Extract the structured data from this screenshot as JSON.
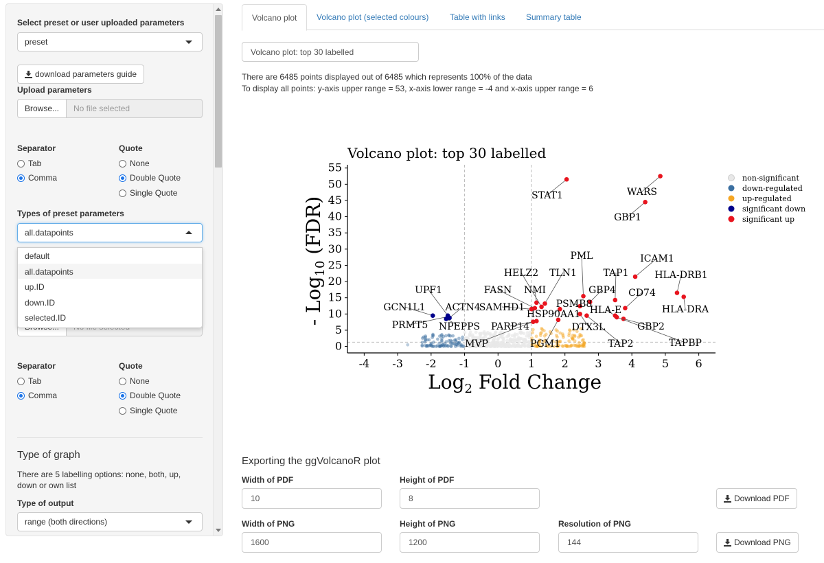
{
  "sidebar": {
    "select_params_label": "Select preset or user uploaded parameters",
    "select_params_value": "preset",
    "download_guide_label": "download parameters guide",
    "upload_label": "Upload parameters",
    "browse_label": "Browse...",
    "no_file_label": "No file selected",
    "separator_label": "Separator",
    "quote_label": "Quote",
    "sep_tab": "Tab",
    "sep_comma": "Comma",
    "quote_none": "None",
    "quote_double": "Double Quote",
    "quote_single": "Single Quote",
    "types_label": "Types of preset parameters",
    "types_value": "all.datapoints",
    "types_options": [
      "default",
      "all.datapoints",
      "up.ID",
      "down.ID",
      "selected.ID"
    ],
    "browse2_label": "Browse...",
    "no_file2_label": "No file selected",
    "graph_heading": "Type of graph",
    "graph_help": "There are 5 labelling options: none, both, up, down or own list",
    "output_label": "Type of output",
    "output_value": "range (both directions)"
  },
  "tabs": [
    "Volcano plot",
    "Volcano plot (selected colours)",
    "Table with links",
    "Summary table"
  ],
  "plot_title_input": "Volcano plot: top 30 labelled",
  "info_line1": "There are 6485 points displayed out of 6485 which represents 100% of the data",
  "info_line2": "To display all points: y-axis upper range = 53, x-axis lower range = -4 and x-axis upper range = 6",
  "export": {
    "heading": "Exporting the ggVolcanoR plot",
    "width_pdf_label": "Width of PDF",
    "width_pdf_value": "10",
    "height_pdf_label": "Height of PDF",
    "height_pdf_value": "8",
    "download_pdf_label": "Download PDF",
    "width_png_label": "Width of PNG",
    "width_png_value": "1600",
    "height_png_label": "Height of PNG",
    "height_png_value": "1200",
    "res_png_label": "Resolution of PNG",
    "res_png_value": "144",
    "download_png_label": "Download PNG"
  },
  "colors": {
    "nonsig": "#e8e8e8",
    "down": "#3b6fa0",
    "up": "#f5a623",
    "sigdown": "#00008b",
    "sigup": "#e8141e",
    "accent": "#337ab7"
  },
  "chart_data": {
    "type": "scatter",
    "title": "Volcano plot: top 30 labelled",
    "xlabel": "Log2 Fold Change",
    "ylabel": "- Log10 (FDR)",
    "xlim": [
      -4.5,
      6.5
    ],
    "ylim": [
      -2,
      56
    ],
    "xticks": [
      -4,
      -3,
      -2,
      -1,
      0,
      1,
      2,
      3,
      4,
      5,
      6
    ],
    "yticks": [
      0,
      5,
      10,
      15,
      20,
      25,
      30,
      35,
      40,
      45,
      50,
      55
    ],
    "thresholds": {
      "x": [
        -1,
        1
      ],
      "y": 1.3
    },
    "grid": false,
    "legend_position": "right",
    "legend": [
      {
        "name": "non-significant",
        "color_key": "nonsig"
      },
      {
        "name": "down-regulated",
        "color_key": "down"
      },
      {
        "name": "up-regulated",
        "color_key": "up"
      },
      {
        "name": "significant down",
        "color_key": "sigdown"
      },
      {
        "name": "significant up",
        "color_key": "sigup"
      }
    ],
    "labelled_points": [
      {
        "gene": "STAT1",
        "x": 2.05,
        "y": 51.5,
        "type": "sigup"
      },
      {
        "gene": "WARS",
        "x": 4.85,
        "y": 52.5,
        "type": "sigup"
      },
      {
        "gene": "GBP1",
        "x": 4.4,
        "y": 44.5,
        "type": "sigup"
      },
      {
        "gene": "ICAM1",
        "x": 4.1,
        "y": 21.5,
        "type": "sigup"
      },
      {
        "gene": "HLA-DRB1",
        "x": 5.35,
        "y": 16.5,
        "type": "sigup"
      },
      {
        "gene": "HLA-DRA",
        "x": 5.55,
        "y": 15.3,
        "type": "sigup"
      },
      {
        "gene": "CD74",
        "x": 3.8,
        "y": 11.8,
        "type": "sigup"
      },
      {
        "gene": "TAP1",
        "x": 3.5,
        "y": 14.3,
        "type": "sigup"
      },
      {
        "gene": "PML",
        "x": 2.55,
        "y": 15.5,
        "type": "sigup"
      },
      {
        "gene": "GBP4",
        "x": 2.75,
        "y": 13.7,
        "type": "sigup"
      },
      {
        "gene": "PSMB8",
        "x": 2.45,
        "y": 12.4,
        "type": "sigup"
      },
      {
        "gene": "HLA-E",
        "x": 3.5,
        "y": 9.5,
        "type": "sigup"
      },
      {
        "gene": "GBP2",
        "x": 3.75,
        "y": 8.5,
        "type": "sigup"
      },
      {
        "gene": "TAPBP",
        "x": 3.55,
        "y": 9.0,
        "type": "sigup"
      },
      {
        "gene": "TAP2",
        "x": 2.65,
        "y": 9.5,
        "type": "sigup"
      },
      {
        "gene": "DTX3L",
        "x": 2.45,
        "y": 10.0,
        "type": "sigup"
      },
      {
        "gene": "HSP90AA1",
        "x": 1.85,
        "y": 11.5,
        "type": "sigup"
      },
      {
        "gene": "TLN1",
        "x": 1.4,
        "y": 13.2,
        "type": "sigup"
      },
      {
        "gene": "NMI",
        "x": 1.15,
        "y": 13.5,
        "type": "sigup"
      },
      {
        "gene": "HELZ2",
        "x": 1.3,
        "y": 12.2,
        "type": "sigup"
      },
      {
        "gene": "FASN",
        "x": 1.1,
        "y": 11.8,
        "type": "sigup"
      },
      {
        "gene": "SAMHD1",
        "x": 1.0,
        "y": 11.5,
        "type": "sigup"
      },
      {
        "gene": "PARP14",
        "x": 1.15,
        "y": 7.8,
        "type": "sigup"
      },
      {
        "gene": "PGM1",
        "x": 1.8,
        "y": 8.2,
        "type": "sigup"
      },
      {
        "gene": "MVP",
        "x": 1.05,
        "y": 7.6,
        "type": "sigup"
      },
      {
        "gene": "UPF1",
        "x": -1.5,
        "y": 9.5,
        "type": "sigdown"
      },
      {
        "gene": "GCN1L1",
        "x": -1.95,
        "y": 9.5,
        "type": "sigdown"
      },
      {
        "gene": "ACTN4",
        "x": -1.45,
        "y": 8.8,
        "type": "sigdown"
      },
      {
        "gene": "PRMT5",
        "x": -1.5,
        "y": 9.2,
        "type": "sigdown"
      },
      {
        "gene": "NPEPPS",
        "x": -1.55,
        "y": 8.5,
        "type": "sigdown"
      }
    ]
  }
}
